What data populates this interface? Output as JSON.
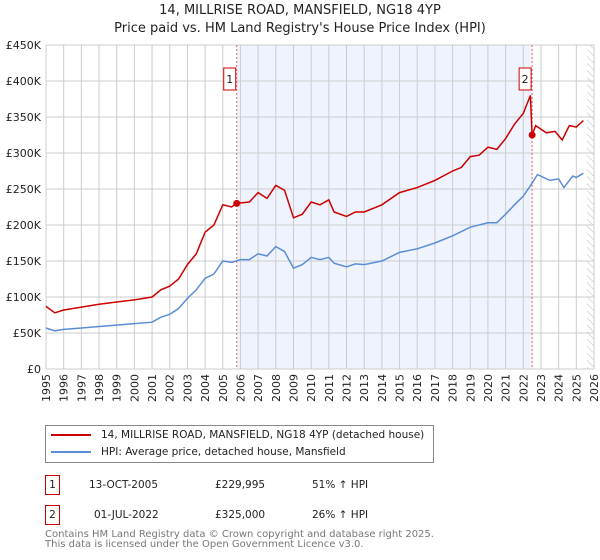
{
  "chart_data": {
    "type": "line",
    "title": "14, MILLRISE ROAD, MANSFIELD, NG18 4YP",
    "subtitle": "Price paid vs. HM Land Registry's House Price Index (HPI)",
    "xlim": [
      1995,
      2026
    ],
    "ylim": [
      0,
      450000
    ],
    "x_ticks": [
      "1995",
      "1996",
      "1997",
      "1998",
      "1999",
      "2000",
      "2001",
      "2002",
      "2003",
      "2004",
      "2005",
      "2006",
      "2007",
      "2008",
      "2009",
      "2010",
      "2011",
      "2012",
      "2013",
      "2014",
      "2015",
      "2016",
      "2017",
      "2018",
      "2019",
      "2020",
      "2021",
      "2022",
      "2023",
      "2024",
      "2025",
      "2026"
    ],
    "y_ticks": [
      {
        "v": 0,
        "label": "£0"
      },
      {
        "v": 50000,
        "label": "£50K"
      },
      {
        "v": 100000,
        "label": "£100K"
      },
      {
        "v": 150000,
        "label": "£150K"
      },
      {
        "v": 200000,
        "label": "£200K"
      },
      {
        "v": 250000,
        "label": "£250K"
      },
      {
        "v": 300000,
        "label": "£300K"
      },
      {
        "v": 350000,
        "label": "£350K"
      },
      {
        "v": 400000,
        "label": "£400K"
      },
      {
        "v": 450000,
        "label": "£450K"
      }
    ],
    "grid": true,
    "shaded_period": [
      2005.79,
      2022.5
    ],
    "forecast_hatch_from": 2025.6,
    "series": [
      {
        "name": "14, MILLRISE ROAD, MANSFIELD, NG18 4YP (detached house)",
        "color": "#cc0000",
        "x": [
          1995,
          1995.5,
          1996,
          1997,
          1998,
          1999,
          2000,
          2001,
          2001.5,
          2002,
          2002.5,
          2003,
          2003.5,
          2004,
          2004.5,
          2005,
          2005.5,
          2005.79,
          2006.5,
          2007,
          2007.5,
          2008,
          2008.5,
          2009,
          2009.5,
          2010,
          2010.5,
          2011,
          2011.3,
          2012,
          2012.5,
          2013,
          2014,
          2015,
          2016,
          2017,
          2018,
          2018.5,
          2019,
          2019.5,
          2020,
          2020.5,
          2021,
          2021.5,
          2022,
          2022.4,
          2022.5,
          2022.7,
          2023.3,
          2023.8,
          2024.2,
          2024.6,
          2025,
          2025.4
        ],
        "y": [
          87000,
          78000,
          82000,
          86000,
          90000,
          93000,
          96000,
          100000,
          110000,
          115000,
          125000,
          145000,
          160000,
          190000,
          200000,
          228000,
          225000,
          229995,
          232000,
          245000,
          237000,
          255000,
          248000,
          210000,
          215000,
          232000,
          228000,
          235000,
          218000,
          212000,
          218000,
          218000,
          228000,
          245000,
          252000,
          262000,
          275000,
          280000,
          295000,
          297000,
          308000,
          305000,
          320000,
          340000,
          355000,
          380000,
          325000,
          338000,
          328000,
          330000,
          318000,
          338000,
          336000,
          345000
        ]
      },
      {
        "name": "HPI: Average price, detached house, Mansfield",
        "color": "#5b8dd6",
        "x": [
          1995,
          1995.5,
          1996,
          1997,
          1998,
          1999,
          2000,
          2001,
          2001.5,
          2002,
          2002.5,
          2003,
          2003.5,
          2004,
          2004.5,
          2005,
          2005.5,
          2006,
          2006.5,
          2007,
          2007.5,
          2008,
          2008.5,
          2009,
          2009.5,
          2010,
          2010.5,
          2011,
          2011.3,
          2012,
          2012.5,
          2013,
          2014,
          2015,
          2016,
          2017,
          2018,
          2019,
          2020,
          2020.5,
          2021,
          2021.5,
          2022,
          2022.5,
          2022.8,
          2023.5,
          2024,
          2024.3,
          2024.8,
          2025,
          2025.4
        ],
        "y": [
          57000,
          53000,
          55000,
          57000,
          59000,
          61000,
          63000,
          65000,
          72000,
          76000,
          84000,
          98000,
          110000,
          126000,
          132000,
          150000,
          148000,
          152000,
          152000,
          160000,
          157000,
          170000,
          163000,
          140000,
          145000,
          155000,
          152000,
          155000,
          147000,
          142000,
          146000,
          145000,
          150000,
          162000,
          167000,
          175000,
          185000,
          197000,
          203000,
          203000,
          215000,
          228000,
          240000,
          258000,
          270000,
          262000,
          264000,
          252000,
          268000,
          266000,
          272000
        ]
      }
    ],
    "sales": [
      {
        "id": "1",
        "x": 2005.79,
        "price": 229995,
        "date": "13-OCT-2005",
        "price_label": "£229,995",
        "hpi_label": "51% ↑ HPI"
      },
      {
        "id": "2",
        "x": 2022.5,
        "price": 325000,
        "date": "01-JUL-2022",
        "price_label": "£325,000",
        "hpi_label": "26% ↑ HPI"
      }
    ]
  },
  "footer": {
    "line1": "Contains HM Land Registry data © Crown copyright and database right 2025.",
    "line2": "This data is licensed under the Open Government Licence v3.0."
  }
}
